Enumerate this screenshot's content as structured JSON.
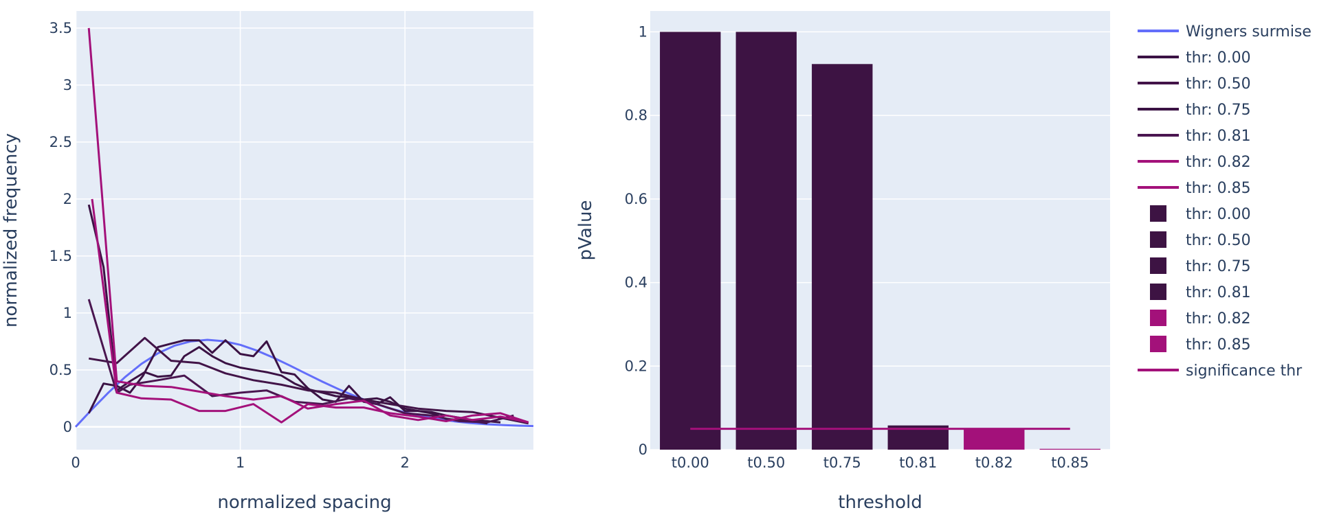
{
  "chart_data": [
    {
      "type": "line",
      "xlabel": "normalized spacing",
      "ylabel": "normalized frequency",
      "xlim": [
        0,
        2.78
      ],
      "ylim": [
        -0.2,
        3.65
      ],
      "xticks": [
        0,
        1,
        2
      ],
      "yticks": [
        0,
        0.5,
        1,
        1.5,
        2,
        2.5,
        3,
        3.5
      ],
      "grid": true,
      "series": [
        {
          "name": "Wigners surmise",
          "color": "#636efa",
          "x": [
            0,
            0.1,
            0.2,
            0.3,
            0.4,
            0.5,
            0.6,
            0.7,
            0.8,
            0.9,
            1.0,
            1.1,
            1.2,
            1.3,
            1.4,
            1.5,
            1.6,
            1.7,
            1.8,
            1.9,
            2.0,
            2.1,
            2.2,
            2.3,
            2.4,
            2.5,
            2.6,
            2.7,
            2.78
          ],
          "y": [
            0,
            0.155,
            0.302,
            0.437,
            0.553,
            0.646,
            0.712,
            0.751,
            0.764,
            0.752,
            0.72,
            0.67,
            0.608,
            0.539,
            0.467,
            0.396,
            0.329,
            0.268,
            0.213,
            0.166,
            0.127,
            0.095,
            0.069,
            0.049,
            0.034,
            0.023,
            0.015,
            0.01,
            0.007
          ]
        },
        {
          "name": "thr: 0.00",
          "color": "#3b1244",
          "x": [
            0.08,
            0.17,
            0.25,
            0.33,
            0.42,
            0.5,
            0.58,
            0.66,
            0.75,
            0.83,
            0.91,
            1.0,
            1.08,
            1.16,
            1.25,
            1.33,
            1.41,
            1.5,
            1.58,
            1.66,
            1.75,
            1.83,
            1.91,
            2.0,
            2.08,
            2.16,
            2.25,
            2.33,
            2.41,
            2.5,
            2.58
          ],
          "y": [
            1.95,
            1.4,
            0.32,
            0.4,
            0.48,
            0.44,
            0.45,
            0.62,
            0.7,
            0.62,
            0.56,
            0.52,
            0.5,
            0.48,
            0.45,
            0.38,
            0.33,
            0.3,
            0.27,
            0.26,
            0.24,
            0.25,
            0.22,
            0.16,
            0.14,
            0.13,
            0.1,
            0.08,
            0.06,
            0.05,
            0.04
          ]
        },
        {
          "name": "thr: 0.50",
          "color": "#421448",
          "x": [
            0.08,
            0.25,
            0.42,
            0.58,
            0.75,
            0.91,
            1.08,
            1.25,
            1.41,
            1.58,
            1.75,
            1.91,
            2.08,
            2.25,
            2.41,
            2.58,
            2.75
          ],
          "y": [
            0.6,
            0.56,
            0.78,
            0.58,
            0.56,
            0.47,
            0.41,
            0.37,
            0.32,
            0.3,
            0.24,
            0.2,
            0.16,
            0.14,
            0.13,
            0.08,
            0.03
          ]
        },
        {
          "name": "thr: 0.75",
          "color": "#3b1244",
          "x": [
            0.08,
            0.17,
            0.25,
            0.33,
            0.41,
            0.5,
            0.58,
            0.66,
            0.75,
            0.83,
            0.91,
            1.0,
            1.08,
            1.16,
            1.25,
            1.33,
            1.41,
            1.5,
            1.58,
            1.66,
            1.75,
            1.83,
            1.91,
            2.0,
            2.08,
            2.16,
            2.25,
            2.33,
            2.41,
            2.5
          ],
          "y": [
            0.12,
            0.38,
            0.36,
            0.3,
            0.45,
            0.7,
            0.73,
            0.76,
            0.76,
            0.65,
            0.76,
            0.64,
            0.62,
            0.75,
            0.48,
            0.46,
            0.34,
            0.24,
            0.22,
            0.36,
            0.22,
            0.2,
            0.26,
            0.14,
            0.14,
            0.12,
            0.07,
            0.06,
            0.05,
            0.03
          ]
        },
        {
          "name": "thr: 0.81",
          "color": "#4a1650",
          "x": [
            0.08,
            0.25,
            0.33,
            0.5,
            0.66,
            0.83,
            1.0,
            1.16,
            1.33,
            1.5,
            1.66,
            1.83,
            2.0,
            2.16,
            2.33,
            2.5,
            2.66
          ],
          "y": [
            1.12,
            0.3,
            0.37,
            0.41,
            0.45,
            0.27,
            0.3,
            0.32,
            0.22,
            0.2,
            0.25,
            0.2,
            0.12,
            0.1,
            0.05,
            0.04,
            0.1
          ]
        },
        {
          "name": "thr: 0.82",
          "color": "#a3117a",
          "x": [
            0.1,
            0.25,
            0.4,
            0.58,
            0.75,
            0.91,
            1.08,
            1.25,
            1.41,
            1.58,
            1.75,
            1.91,
            2.08,
            2.25,
            2.41,
            2.58,
            2.75
          ],
          "y": [
            2.0,
            0.3,
            0.25,
            0.24,
            0.14,
            0.14,
            0.2,
            0.04,
            0.2,
            0.17,
            0.17,
            0.12,
            0.09,
            0.05,
            0.1,
            0.12,
            0.04
          ]
        },
        {
          "name": "thr: 0.85",
          "color": "#a3117a",
          "x": [
            0.08,
            0.25,
            0.42,
            0.58,
            0.75,
            0.91,
            1.08,
            1.25,
            1.41,
            1.58,
            1.75,
            1.91,
            2.08,
            2.25,
            2.41,
            2.58,
            2.75
          ],
          "y": [
            3.5,
            0.4,
            0.36,
            0.35,
            0.31,
            0.27,
            0.24,
            0.27,
            0.16,
            0.2,
            0.23,
            0.1,
            0.06,
            0.1,
            0.06,
            0.09,
            0.04
          ]
        }
      ]
    },
    {
      "type": "bar",
      "xlabel": "threshold",
      "ylabel": "pValue",
      "categories": [
        "t0.00",
        "t0.50",
        "t0.75",
        "t0.81",
        "t0.82",
        "t0.85"
      ],
      "ylim": [
        0,
        1.05
      ],
      "yticks": [
        0,
        0.2,
        0.4,
        0.6,
        0.8,
        1
      ],
      "grid": true,
      "series": [
        {
          "name": "thr: 0.00",
          "color": "#3d1343",
          "category": "t0.00",
          "value": 1.0
        },
        {
          "name": "thr: 0.50",
          "color": "#3d1343",
          "category": "t0.50",
          "value": 1.0
        },
        {
          "name": "thr: 0.75",
          "color": "#3d1343",
          "category": "t0.75",
          "value": 0.923
        },
        {
          "name": "thr: 0.81",
          "color": "#3d1343",
          "category": "t0.81",
          "value": 0.058
        },
        {
          "name": "thr: 0.82",
          "color": "#a3117a",
          "category": "t0.82",
          "value": 0.05
        },
        {
          "name": "thr: 0.85",
          "color": "#a3117a",
          "category": "t0.85",
          "value": 0.002
        }
      ],
      "reference_line": {
        "name": "significance thr",
        "color": "#a3117a",
        "value": 0.05
      }
    }
  ],
  "legend": {
    "placement": "right",
    "items": [
      {
        "label": "Wigners surmise",
        "symbol": "line",
        "color": "#636efa"
      },
      {
        "label": "thr: 0.00",
        "symbol": "line",
        "color": "#3b1244"
      },
      {
        "label": "thr: 0.50",
        "symbol": "line",
        "color": "#421448"
      },
      {
        "label": "thr: 0.75",
        "symbol": "line",
        "color": "#3b1244"
      },
      {
        "label": "thr: 0.81",
        "symbol": "line",
        "color": "#4a1650"
      },
      {
        "label": "thr: 0.82",
        "symbol": "line",
        "color": "#a3117a"
      },
      {
        "label": "thr: 0.85",
        "symbol": "line",
        "color": "#a3117a"
      },
      {
        "label": "thr: 0.00",
        "symbol": "square",
        "color": "#3d1343"
      },
      {
        "label": "thr: 0.50",
        "symbol": "square",
        "color": "#3d1343"
      },
      {
        "label": "thr: 0.75",
        "symbol": "square",
        "color": "#3d1343"
      },
      {
        "label": "thr: 0.81",
        "symbol": "square",
        "color": "#3d1343"
      },
      {
        "label": "thr: 0.82",
        "symbol": "square",
        "color": "#a3117a"
      },
      {
        "label": "thr: 0.85",
        "symbol": "square",
        "color": "#a3117a"
      },
      {
        "label": "significance thr",
        "symbol": "line",
        "color": "#a3117a"
      }
    ]
  },
  "colors": {
    "plot_bg": "#e5ecf6",
    "grid": "#ffffff",
    "text": "#2a3f5f"
  }
}
